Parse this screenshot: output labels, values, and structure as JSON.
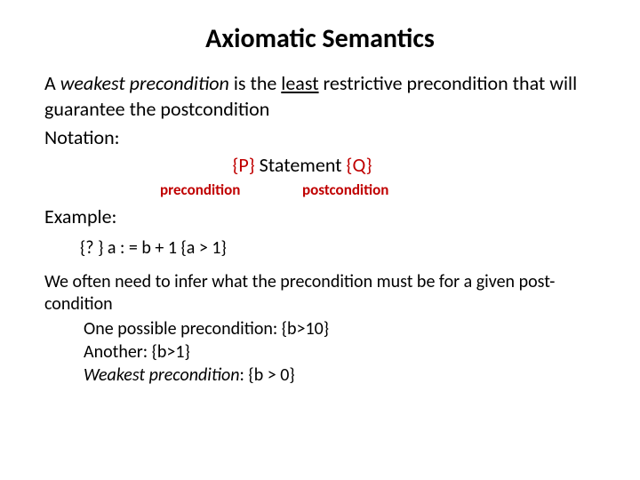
{
  "title": "Axiomatic Semantics",
  "intro": {
    "pre": "A ",
    "weakest": "weakest precondition",
    "mid": " is the ",
    "least": "least",
    "post": " restrictive precondition that will guarantee the postcondition"
  },
  "notation_label": "Notation:",
  "formula": {
    "P": "{P}",
    "stmt": " Statement ",
    "Q": "{Q}"
  },
  "labels": {
    "precondition": "precondition",
    "postcondition": "postcondition"
  },
  "example_label": "Example:",
  "example_code": "{? } a : = b + 1  {a > 1}",
  "infer_text": "We often need to infer what the precondition must be for a given post-condition",
  "line1": "One possible precondition: {b>10}",
  "line2": "Another: {b>1}",
  "line3_pre": "Weakest precondition",
  "line3_post": ": {b > 0}"
}
